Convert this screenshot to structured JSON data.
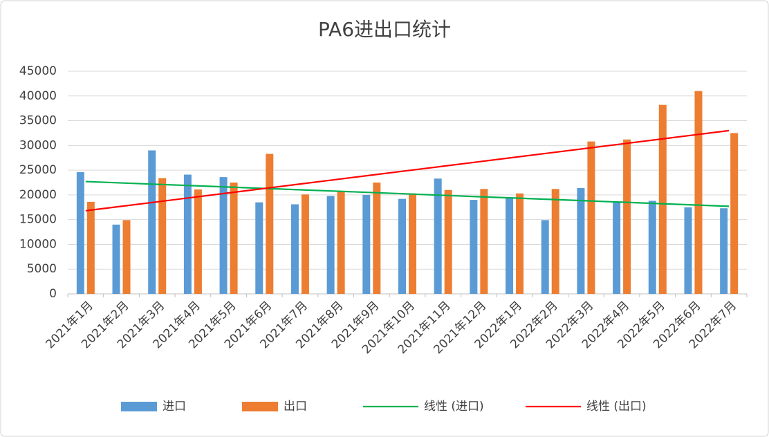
{
  "chart_data": {
    "type": "bar",
    "title": "PA6进出口统计",
    "categories": [
      "2021年1月",
      "2021年2月",
      "2021年3月",
      "2021年4月",
      "2021年5月",
      "2021年6月",
      "2021年7月",
      "2021年8月",
      "2021年9月",
      "2021年10月",
      "2021年11月",
      "2021年12月",
      "2022年1月",
      "2022年2月",
      "2022年3月",
      "2022年4月",
      "2022年5月",
      "2022年6月",
      "2022年7月"
    ],
    "series": [
      {
        "name": "进口",
        "type": "bar",
        "color": "#5b9bd5",
        "values": [
          24600,
          14000,
          29000,
          24100,
          23600,
          18500,
          18100,
          19800,
          20000,
          19200,
          23300,
          19000,
          19500,
          14900,
          21400,
          18500,
          18800,
          17500,
          17300
        ]
      },
      {
        "name": "出口",
        "type": "bar",
        "color": "#ed7d31",
        "values": [
          18600,
          14900,
          23400,
          21100,
          22500,
          28300,
          20100,
          20700,
          22500,
          20300,
          21000,
          21200,
          20300,
          21200,
          30800,
          31200,
          38200,
          41000,
          32500
        ]
      },
      {
        "name": "线性 (进口)",
        "type": "line",
        "color": "#00b050",
        "values": [
          22700,
          22420,
          22140,
          21870,
          21590,
          21310,
          21030,
          20760,
          20480,
          20200,
          19920,
          19640,
          19370,
          19090,
          18810,
          18530,
          18260,
          17980,
          17700
        ]
      },
      {
        "name": "线性 (出口)",
        "type": "line",
        "color": "#ff0000",
        "values": [
          16800,
          17700,
          18600,
          19500,
          20400,
          21300,
          22200,
          23100,
          24000,
          24900,
          25800,
          26700,
          27600,
          28500,
          29400,
          30300,
          31200,
          32100,
          33000
        ]
      }
    ],
    "ylim": [
      0,
      45000
    ],
    "yticks": [
      0,
      5000,
      10000,
      15000,
      20000,
      25000,
      30000,
      35000,
      40000,
      45000
    ],
    "grid": true,
    "legend": "bottom"
  }
}
